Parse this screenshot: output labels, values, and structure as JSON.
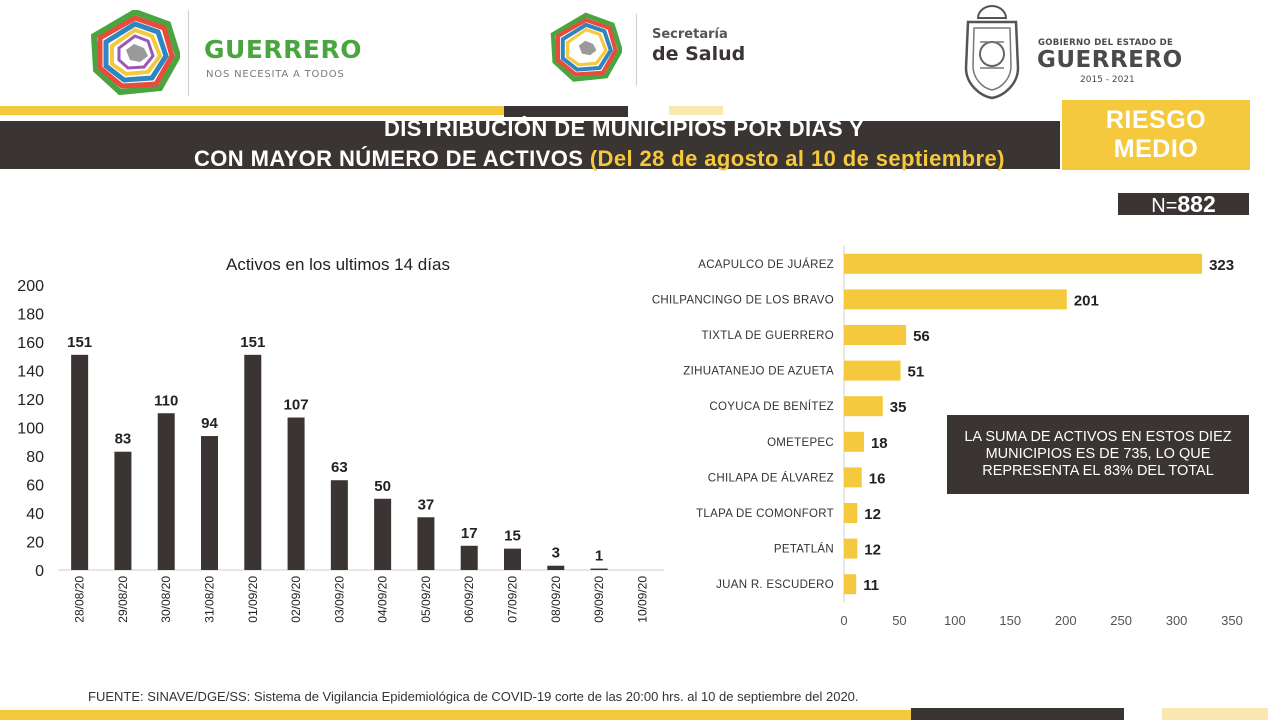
{
  "header": {
    "left_logo": {
      "name": "GUERRERO",
      "tagline": "NOS NECESITA A TODOS"
    },
    "mid_logo": {
      "line1": "Secretaría",
      "line2": "de Salud"
    },
    "right_logo": {
      "line1": "GOBIERNO DEL ESTADO DE",
      "line2": "GUERRERO",
      "years": "2015 - 2021"
    }
  },
  "title": {
    "line1": "DISTRIBUCIÓN DE MUNICIPIOS POR DÍAS Y",
    "line2": "CON MAYOR NÚMERO DE ACTIVOS",
    "line2_highlight": "(Del 28 de agosto al 10 de septiembre)"
  },
  "risk": {
    "line1": "RIESGO",
    "line2": "MEDIO"
  },
  "total": {
    "prefix": "N=",
    "value": "882"
  },
  "note": {
    "line1": "LA SUMA DE ACTIVOS EN ESTOS DIEZ",
    "line2": "MUNICIPIOS ES DE 735, LO QUE",
    "line3": "REPRESENTA EL 83% DEL TOTAL"
  },
  "source": "FUENTE: SINAVE/DGE/SS: Sistema de Vigilancia Epidemiológica de COVID-19 corte de las 20:00 hrs. al 10 de septiembre del 2020.",
  "colors": {
    "dark": "#3a3433",
    "yellow": "#f5c93e",
    "green": "#4aa540"
  },
  "chart_data": [
    {
      "type": "bar",
      "orientation": "vertical",
      "title": "Activos en los ultimos 14 días",
      "categories": [
        "28/08/20",
        "29/08/20",
        "30/08/20",
        "31/08/20",
        "01/09/20",
        "02/09/20",
        "03/09/20",
        "04/09/20",
        "05/09/20",
        "06/09/20",
        "07/09/20",
        "08/09/20",
        "09/09/20",
        "10/09/20"
      ],
      "values": [
        151,
        83,
        110,
        94,
        151,
        107,
        63,
        50,
        37,
        17,
        15,
        3,
        1,
        null
      ],
      "data_labels": [
        "151",
        "83",
        "110",
        "94",
        "151",
        "107",
        "63",
        "50",
        "37",
        "17",
        "15",
        "3",
        "1",
        ""
      ],
      "ylim": [
        0,
        200
      ],
      "yticks": [
        0,
        20,
        40,
        60,
        80,
        100,
        120,
        140,
        160,
        180,
        200
      ],
      "grid": false,
      "color": "#3a3433"
    },
    {
      "type": "bar",
      "orientation": "horizontal",
      "categories": [
        "ACAPULCO DE JUÁREZ",
        "CHILPANCINGO DE LOS BRAVO",
        "TIXTLA DE GUERRERO",
        "ZIHUATANEJO DE AZUETA",
        "COYUCA DE BENÍTEZ",
        "OMETEPEC",
        "CHILAPA DE ÁLVAREZ",
        "TLAPA DE COMONFORT",
        "PETATLÁN",
        "JUAN R. ESCUDERO"
      ],
      "values": [
        323,
        201,
        56,
        51,
        35,
        18,
        16,
        12,
        12,
        11
      ],
      "xlim": [
        0,
        350
      ],
      "xticks": [
        0,
        50,
        100,
        150,
        200,
        250,
        300,
        350
      ],
      "grid": false,
      "color": "#f5c93e"
    }
  ]
}
